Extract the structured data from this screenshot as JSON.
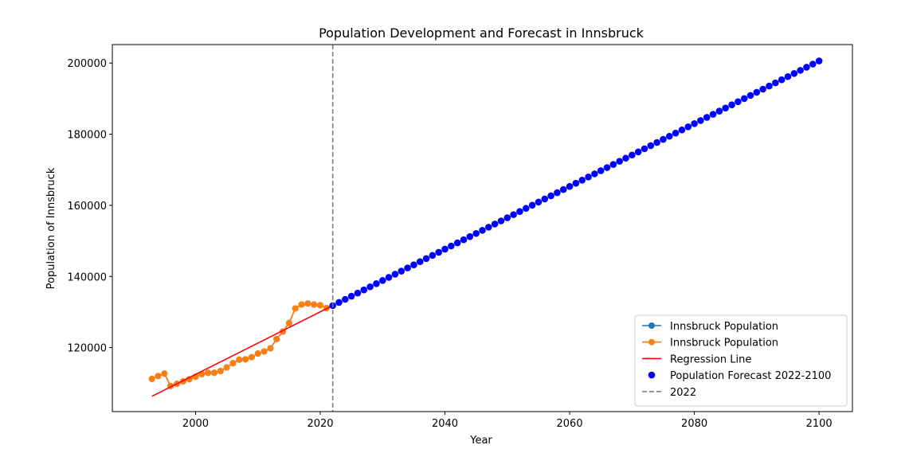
{
  "chart_data": {
    "type": "line",
    "title": "Population Development and Forecast in Innsbruck",
    "xlabel": "Year",
    "ylabel": "Population of Innsbruck",
    "xlim": [
      1986.65,
      2105.35
    ],
    "ylim": [
      102000,
      205200
    ],
    "xticks": [
      2000,
      2020,
      2040,
      2060,
      2080,
      2100
    ],
    "yticks": [
      120000,
      140000,
      160000,
      180000,
      200000
    ],
    "grid": false,
    "legend_position": "lower-right",
    "series": [
      {
        "name": "Innsbruck Population",
        "style": "line-marker",
        "color": "#1f77b4",
        "x": [
          1993,
          1994,
          1995,
          1996,
          1997,
          1998,
          1999,
          2000,
          2001,
          2002,
          2003,
          2004,
          2005,
          2006,
          2007,
          2008,
          2009,
          2010,
          2011,
          2012,
          2013,
          2014,
          2015,
          2016,
          2017,
          2018,
          2019,
          2020,
          2021
        ],
        "y": [
          111200,
          112000,
          112700,
          109200,
          109800,
          110500,
          111100,
          111800,
          112500,
          112900,
          112900,
          113400,
          114400,
          115600,
          116600,
          116700,
          117300,
          118300,
          118900,
          119800,
          122400,
          124500,
          126900,
          131000,
          132100,
          132400,
          132100,
          131900,
          131100
        ]
      },
      {
        "name": "Innsbruck Population",
        "style": "line-marker",
        "color": "#ff7f0e",
        "x": [
          1993,
          1994,
          1995,
          1996,
          1997,
          1998,
          1999,
          2000,
          2001,
          2002,
          2003,
          2004,
          2005,
          2006,
          2007,
          2008,
          2009,
          2010,
          2011,
          2012,
          2013,
          2014,
          2015,
          2016,
          2017,
          2018,
          2019,
          2020,
          2021
        ],
        "y": [
          111200,
          112000,
          112700,
          109200,
          109800,
          110500,
          111100,
          111800,
          112500,
          112900,
          112900,
          113400,
          114400,
          115600,
          116600,
          116700,
          117300,
          118300,
          118900,
          119800,
          122400,
          124500,
          126900,
          131000,
          132100,
          132400,
          132100,
          131900,
          131100
        ]
      },
      {
        "name": "Regression Line",
        "style": "line",
        "color": "#ff0000",
        "x": [
          1993,
          2022
        ],
        "y": [
          106300,
          131800
        ]
      },
      {
        "name": "Population Forecast 2022-2100",
        "style": "marker",
        "color": "#0000ff",
        "x_start": 2022,
        "x_end": 2100,
        "y_start": 131800,
        "y_end": 200600
      },
      {
        "name": "2022",
        "style": "vline",
        "color": "#808080",
        "x": 2022
      }
    ]
  }
}
